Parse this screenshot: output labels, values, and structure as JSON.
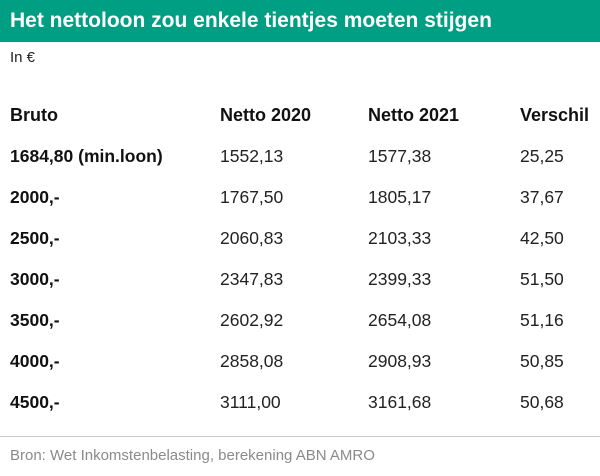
{
  "title": "Het nettoloon zou enkele tientjes moeten stijgen",
  "unit": "In €",
  "source": "Bron: Wet Inkomstenbelasting, berekening ABN AMRO",
  "colors": {
    "accent": "#009e83"
  },
  "chart_data": {
    "type": "table",
    "title": "Het nettoloon zou enkele tientjes moeten stijgen",
    "columns": [
      "Bruto",
      "Netto 2020",
      "Netto 2021",
      "Verschil"
    ],
    "rows": [
      [
        "1684,80 (min.loon)",
        "1552,13",
        "1577,38",
        "25,25"
      ],
      [
        "2000,-",
        "1767,50",
        "1805,17",
        "37,67"
      ],
      [
        "2500,-",
        "2060,83",
        "2103,33",
        "42,50"
      ],
      [
        "3000,-",
        "2347,83",
        "2399,33",
        "51,50"
      ],
      [
        "3500,-",
        "2602,92",
        "2654,08",
        "51,16"
      ],
      [
        "4000,-",
        "2858,08",
        "2908,93",
        "50,85"
      ],
      [
        "4500,-",
        "3111,00",
        "3161,68",
        "50,68"
      ]
    ]
  }
}
